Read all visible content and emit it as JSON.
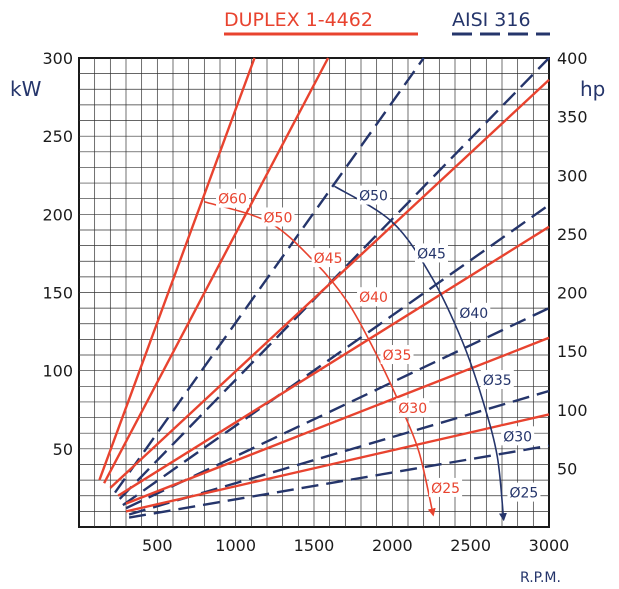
{
  "chart_data": {
    "type": "line",
    "title": "",
    "xlabel": "R.P.M.",
    "ylabel_left": "kW",
    "ylabel_right": "hp",
    "xlim": [
      0,
      3000
    ],
    "ylim_left": [
      0,
      300
    ],
    "ylim_right": [
      0,
      400
    ],
    "x_ticks": [
      500,
      1000,
      1500,
      2000,
      2500,
      3000
    ],
    "y_ticks_left": [
      50,
      100,
      150,
      200,
      250,
      300
    ],
    "y_ticks_right": [
      50,
      100,
      150,
      200,
      250,
      300,
      350,
      400
    ],
    "grid": true,
    "legend": [
      {
        "name": "DUPLEX 1-4462",
        "color": "#e8432f",
        "style": "solid"
      },
      {
        "name": "AISI 316",
        "color": "#25356b",
        "style": "dashed"
      }
    ],
    "series_duplex": [
      {
        "points": [
          [
            130,
            30
          ],
          [
            1120,
            300
          ]
        ]
      },
      {
        "points": [
          [
            160,
            28
          ],
          [
            1590,
            300
          ]
        ]
      },
      {
        "points": [
          [
            200,
            25
          ],
          [
            3000,
            286
          ]
        ]
      },
      {
        "points": [
          [
            250,
            20
          ],
          [
            3000,
            192
          ]
        ]
      },
      {
        "points": [
          [
            300,
            15
          ],
          [
            3000,
            121
          ]
        ]
      },
      {
        "points": [
          [
            300,
            10
          ],
          [
            3000,
            72
          ]
        ]
      }
    ],
    "series_aisi": [
      {
        "points": [
          [
            230,
            22
          ],
          [
            2200,
            300
          ]
        ]
      },
      {
        "points": [
          [
            260,
            18
          ],
          [
            3000,
            300
          ]
        ]
      },
      {
        "points": [
          [
            280,
            14
          ],
          [
            3000,
            206
          ]
        ]
      },
      {
        "points": [
          [
            300,
            12
          ],
          [
            3000,
            140
          ]
        ]
      },
      {
        "points": [
          [
            320,
            8
          ],
          [
            3000,
            87
          ]
        ]
      },
      {
        "points": [
          [
            320,
            6
          ],
          [
            3000,
            52
          ]
        ]
      }
    ],
    "arc_duplex": {
      "points": [
        [
          800,
          208
        ],
        [
          1210,
          195
        ],
        [
          1500,
          170
        ],
        [
          1720,
          143
        ],
        [
          1900,
          110
        ],
        [
          2050,
          78
        ],
        [
          2170,
          48
        ],
        [
          2260,
          8
        ]
      ],
      "labels": [
        {
          "text": "Ø60",
          "x": 980,
          "y": 210
        },
        {
          "text": "Ø50",
          "x": 1270,
          "y": 198
        },
        {
          "text": "Ø45",
          "x": 1590,
          "y": 172
        },
        {
          "text": "Ø40",
          "x": 1880,
          "y": 147
        },
        {
          "text": "Ø35",
          "x": 2030,
          "y": 110
        },
        {
          "text": "Ø30",
          "x": 2130,
          "y": 76
        },
        {
          "text": "Ø25",
          "x": 2340,
          "y": 25
        }
      ]
    },
    "arc_aisi": {
      "points": [
        [
          1630,
          218
        ],
        [
          2000,
          195
        ],
        [
          2250,
          160
        ],
        [
          2450,
          118
        ],
        [
          2580,
          80
        ],
        [
          2670,
          45
        ],
        [
          2710,
          5
        ]
      ],
      "labels": [
        {
          "text": "Ø50",
          "x": 1880,
          "y": 212
        },
        {
          "text": "Ø45",
          "x": 2250,
          "y": 175
        },
        {
          "text": "Ø40",
          "x": 2520,
          "y": 137
        },
        {
          "text": "Ø35",
          "x": 2670,
          "y": 94
        },
        {
          "text": "Ø30",
          "x": 2800,
          "y": 58
        },
        {
          "text": "Ø25",
          "x": 2840,
          "y": 22
        }
      ]
    }
  }
}
